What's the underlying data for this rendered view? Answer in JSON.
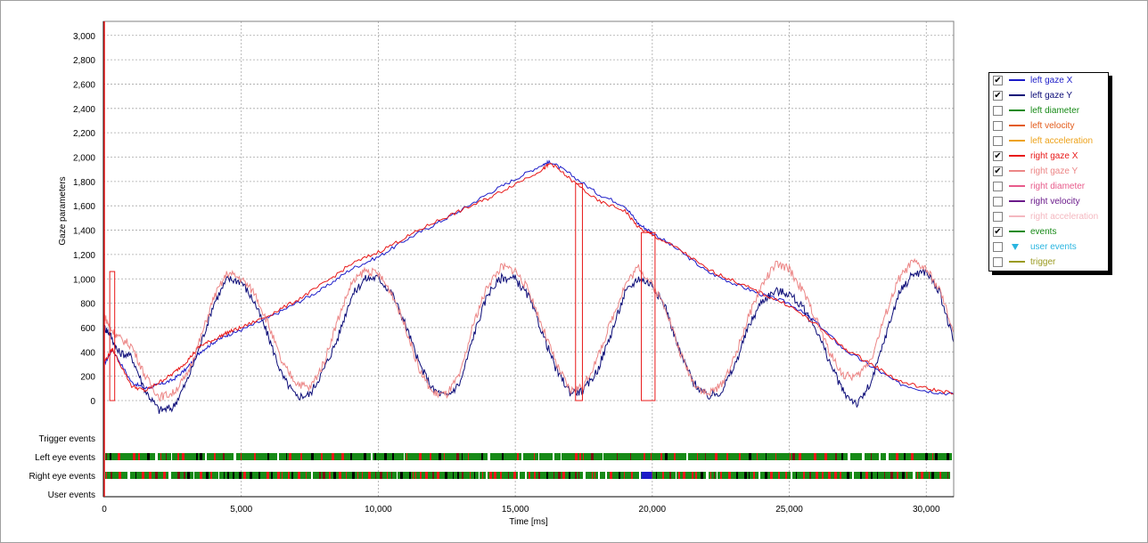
{
  "chart_data": {
    "type": "line",
    "xlabel": "Time [ms]",
    "ylabel": "Gaze parameters",
    "xlim": [
      0,
      31000
    ],
    "ylim": [
      -250,
      3150
    ],
    "x_ticks": [
      "0",
      "5,000",
      "10,000",
      "15,000",
      "20,000",
      "25,000",
      "30,000"
    ],
    "x_tick_values": [
      0,
      5000,
      10000,
      15000,
      20000,
      25000,
      30000
    ],
    "y_ticks": [
      "0",
      "200",
      "400",
      "600",
      "800",
      "1,000",
      "1,200",
      "1,400",
      "1,600",
      "1,800",
      "2,000",
      "2,200",
      "2,400",
      "2,600",
      "2,800",
      "3,000"
    ],
    "y_tick_values": [
      0,
      200,
      400,
      600,
      800,
      1000,
      1200,
      1400,
      1600,
      1800,
      2000,
      2200,
      2400,
      2600,
      2800,
      3000
    ],
    "grid": true,
    "legend_position": "right",
    "event_rows": [
      "Trigger events",
      "Left eye events",
      "Right eye events",
      "User events"
    ],
    "series": [
      {
        "name": "left gaze X",
        "color": "#1c1cc8",
        "x": [
          0,
          300,
          1000,
          1500,
          2000,
          2500,
          3000,
          3500,
          4000,
          4500,
          5000,
          6000,
          7000,
          8000,
          9000,
          10000,
          11000,
          12000,
          13000,
          14000,
          15000,
          16000,
          16300,
          17000,
          18000,
          19000,
          19500,
          20000,
          21000,
          22000,
          23000,
          24000,
          25000,
          26000,
          27000,
          28000,
          29000,
          30000,
          31000
        ],
        "y": [
          300,
          420,
          150,
          100,
          130,
          170,
          260,
          400,
          480,
          540,
          580,
          680,
          800,
          920,
          1080,
          1180,
          1320,
          1440,
          1560,
          1700,
          1820,
          1940,
          1960,
          1860,
          1700,
          1600,
          1450,
          1380,
          1230,
          1060,
          960,
          870,
          800,
          640,
          420,
          280,
          140,
          80,
          50
        ]
      },
      {
        "name": "left gaze Y",
        "color": "#0c0c78",
        "x": [
          0,
          200,
          500,
          1000,
          1500,
          2000,
          2500,
          3000,
          3500,
          4000,
          4500,
          5000,
          5500,
          6000,
          6500,
          7000,
          7500,
          8000,
          8500,
          9000,
          9500,
          10000,
          10500,
          11000,
          11500,
          12000,
          12500,
          13000,
          13500,
          14000,
          14500,
          15000,
          15500,
          16000,
          16500,
          17000,
          17500,
          18000,
          18500,
          19000,
          19500,
          20000,
          20500,
          21000,
          21500,
          22000,
          22500,
          23000,
          23500,
          24000,
          24500,
          25000,
          25500,
          26000,
          26500,
          27000,
          27500,
          28000,
          28500,
          29000,
          29500,
          30000,
          30500,
          31000
        ],
        "y": [
          600,
          550,
          400,
          360,
          80,
          -80,
          -60,
          150,
          450,
          800,
          1000,
          980,
          800,
          520,
          200,
          30,
          50,
          250,
          500,
          850,
          1000,
          1010,
          880,
          620,
          300,
          90,
          30,
          150,
          550,
          880,
          1010,
          1000,
          850,
          550,
          250,
          70,
          80,
          250,
          550,
          880,
          1010,
          950,
          760,
          400,
          150,
          30,
          70,
          280,
          600,
          820,
          900,
          880,
          760,
          580,
          300,
          60,
          -30,
          150,
          520,
          880,
          1040,
          1060,
          880,
          480
        ]
      },
      {
        "name": "right gaze X",
        "color": "#e81818",
        "x": [
          0,
          300,
          1000,
          1500,
          2000,
          2500,
          3000,
          3500,
          4000,
          4500,
          5000,
          6000,
          7000,
          8000,
          9000,
          10000,
          11000,
          12000,
          13000,
          14000,
          15000,
          16000,
          16300,
          17000,
          18000,
          19000,
          19500,
          20000,
          21000,
          22000,
          23000,
          24000,
          25000,
          26000,
          27000,
          28000,
          29000,
          30000,
          31000
        ],
        "y": [
          320,
          420,
          120,
          80,
          150,
          220,
          320,
          450,
          500,
          560,
          600,
          700,
          820,
          960,
          1120,
          1220,
          1340,
          1460,
          1560,
          1660,
          1780,
          1900,
          1950,
          1820,
          1640,
          1560,
          1420,
          1360,
          1240,
          1080,
          980,
          880,
          780,
          620,
          430,
          300,
          160,
          100,
          60
        ]
      },
      {
        "name": "right gaze Y",
        "color": "#ec8686",
        "x": [
          0,
          200,
          500,
          1000,
          1500,
          2000,
          2500,
          3000,
          3500,
          4000,
          4500,
          5000,
          5500,
          6000,
          6500,
          7000,
          7500,
          8000,
          8500,
          9000,
          9500,
          10000,
          10500,
          11000,
          11500,
          12000,
          12500,
          13000,
          13500,
          14000,
          14500,
          15000,
          15500,
          16000,
          16500,
          17000,
          17500,
          18000,
          18500,
          19000,
          19500,
          20000,
          20500,
          21000,
          21500,
          22000,
          22500,
          23000,
          23500,
          24000,
          24500,
          25000,
          25500,
          26000,
          26500,
          27000,
          27500,
          28000,
          28500,
          29000,
          29500,
          30000,
          30500,
          31000
        ],
        "y": [
          700,
          600,
          520,
          450,
          200,
          30,
          60,
          200,
          500,
          850,
          1050,
          1000,
          880,
          620,
          300,
          150,
          100,
          300,
          650,
          950,
          1070,
          1040,
          880,
          600,
          250,
          60,
          50,
          220,
          650,
          950,
          1100,
          1070,
          900,
          600,
          300,
          80,
          120,
          350,
          650,
          950,
          1100,
          950,
          760,
          400,
          150,
          50,
          120,
          350,
          680,
          950,
          1120,
          1080,
          900,
          660,
          380,
          200,
          200,
          350,
          700,
          1000,
          1140,
          1080,
          900,
          560
        ]
      }
    ],
    "annotation_pulses": [
      {
        "color": "#e81818",
        "x_start": 200,
        "x_end": 380,
        "y_low": 0,
        "y_high": 1060
      },
      {
        "color": "#e81818",
        "x_start": 17200,
        "x_end": 17450,
        "y_low": 0,
        "y_high": 1780
      },
      {
        "color": "#e81818",
        "x_start": 19600,
        "x_end": 20100,
        "y_low": 0,
        "y_high": 1380
      }
    ]
  },
  "legend": [
    {
      "label": "left gaze X",
      "checked": true,
      "color": "#1c1cc8",
      "marker": false
    },
    {
      "label": "left gaze Y",
      "checked": true,
      "color": "#0c0c78",
      "marker": false
    },
    {
      "label": "left diameter",
      "checked": false,
      "color": "#178a17",
      "marker": false
    },
    {
      "label": "left velocity",
      "checked": false,
      "color": "#e35b1a",
      "marker": false
    },
    {
      "label": "left acceleration",
      "checked": false,
      "color": "#eda21a",
      "marker": false
    },
    {
      "label": "right gaze X",
      "checked": true,
      "color": "#e81818",
      "marker": false
    },
    {
      "label": "right gaze Y",
      "checked": true,
      "color": "#ec8686",
      "marker": false
    },
    {
      "label": "right diameter",
      "checked": false,
      "color": "#e85b8b",
      "marker": false
    },
    {
      "label": "right velocity",
      "checked": false,
      "color": "#6a1a8a",
      "marker": false
    },
    {
      "label": "right acceleration",
      "checked": false,
      "color": "#f4b8c0",
      "marker": false
    },
    {
      "label": "events",
      "checked": true,
      "color": "#178a17",
      "marker": false
    },
    {
      "label": "user events",
      "checked": false,
      "color": "#2ab5e0",
      "marker": true
    },
    {
      "label": "trigger",
      "checked": false,
      "color": "#9a9a20",
      "marker": false
    }
  ],
  "check_glyph": "✔"
}
